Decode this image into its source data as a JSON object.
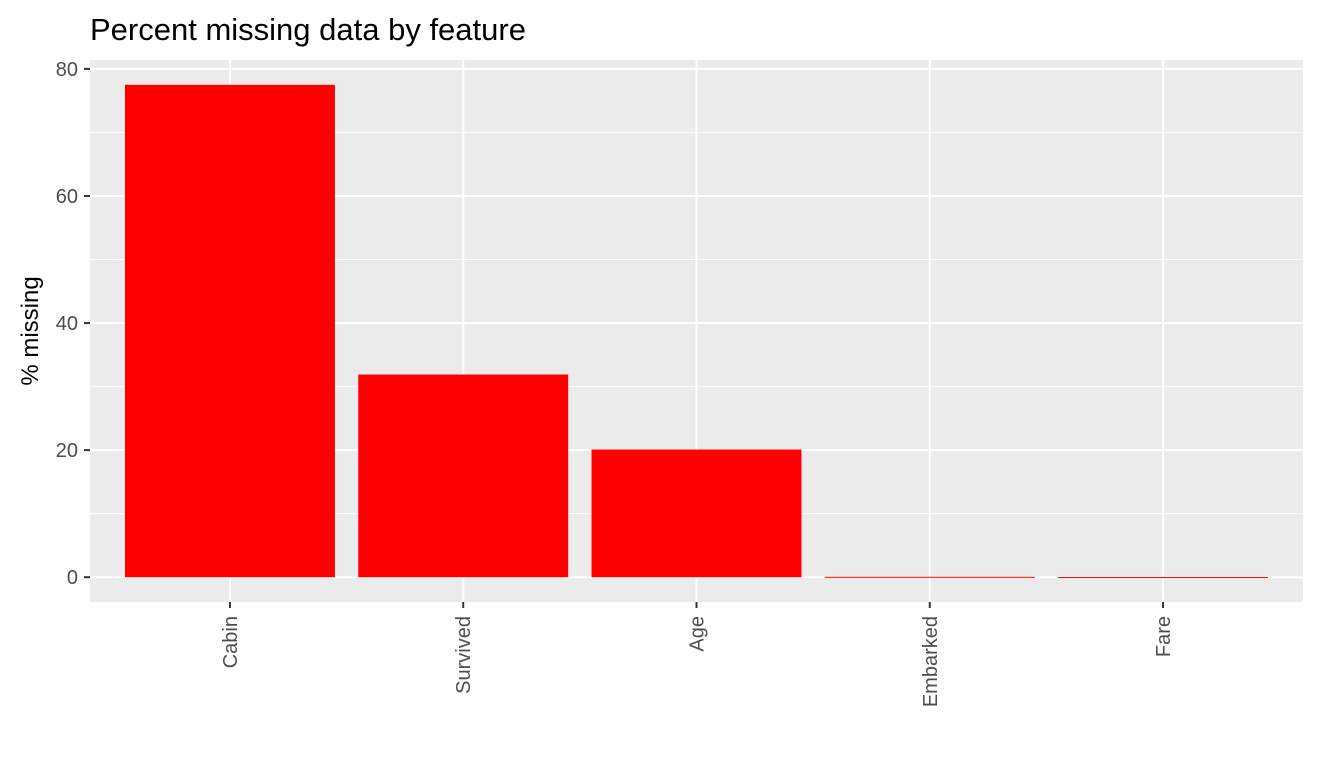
{
  "chart_data": {
    "type": "bar",
    "title": "Percent missing data by feature",
    "xlabel": "",
    "ylabel": "% missing",
    "categories": [
      "Cabin",
      "Survived",
      "Age",
      "Embarked",
      "Fare"
    ],
    "values": [
      77.5,
      31.9,
      20.1,
      0.07,
      0.03
    ],
    "ylim": [
      -3.9,
      81.4
    ],
    "yticks": [
      0,
      20,
      40,
      60,
      80
    ],
    "ytick_labels": [
      "0",
      "20",
      "40",
      "60",
      "80"
    ],
    "grid": true,
    "legend": "none",
    "colors": {
      "bar": "#ff0000",
      "panel": "#ebebeb",
      "grid": "#ffffff",
      "tick_text": "#4d4d4d"
    }
  }
}
